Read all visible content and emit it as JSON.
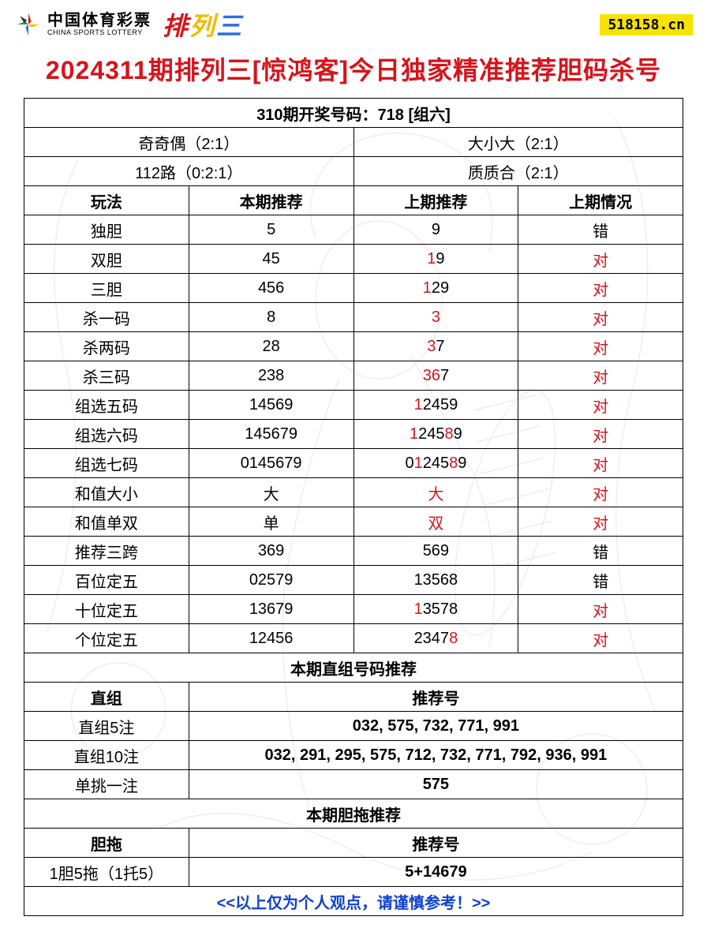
{
  "header": {
    "logo_cn": "中国体育彩票",
    "logo_en": "CHINA SPORTS LOTTERY",
    "pls": {
      "c1": "排",
      "c2": "列",
      "c3": "三"
    },
    "site_tag": "518158.cn"
  },
  "title": "2024311期排列三[惊鸿客]今日独家精准推荐胆码杀号",
  "draw_header": "310期开奖号码：718 [组六]",
  "summary": {
    "r1c1": "奇奇偶（2:1）",
    "r1c2": "大小大（2:1）",
    "r2c1": "112路（0:2:1）",
    "r2c2": "质质合（2:1）"
  },
  "cols": {
    "c1": "玩法",
    "c2": "本期推荐",
    "c3": "上期推荐",
    "c4": "上期情况"
  },
  "rows": [
    {
      "play": "独胆",
      "cur": "5",
      "prev": [
        {
          "t": "9",
          "r": false
        }
      ],
      "res": "错",
      "res_red": false
    },
    {
      "play": "双胆",
      "cur": "45",
      "prev": [
        {
          "t": "1",
          "r": true
        },
        {
          "t": "9",
          "r": false
        }
      ],
      "res": "对",
      "res_red": true
    },
    {
      "play": "三胆",
      "cur": "456",
      "prev": [
        {
          "t": "1",
          "r": true
        },
        {
          "t": "2",
          "r": false
        },
        {
          "t": "9",
          "r": false
        }
      ],
      "res": "对",
      "res_red": true
    },
    {
      "play": "杀一码",
      "cur": "8",
      "prev": [
        {
          "t": "3",
          "r": true
        }
      ],
      "res": "对",
      "res_red": true
    },
    {
      "play": "杀两码",
      "cur": "28",
      "prev": [
        {
          "t": "3",
          "r": true
        },
        {
          "t": "7",
          "r": false
        }
      ],
      "res": "对",
      "res_red": true
    },
    {
      "play": "杀三码",
      "cur": "238",
      "prev": [
        {
          "t": "3",
          "r": true
        },
        {
          "t": "6",
          "r": true
        },
        {
          "t": "7",
          "r": false
        }
      ],
      "res": "对",
      "res_red": true
    },
    {
      "play": "组选五码",
      "cur": "14569",
      "prev": [
        {
          "t": "1",
          "r": true
        },
        {
          "t": "2",
          "r": false
        },
        {
          "t": "4",
          "r": false
        },
        {
          "t": "5",
          "r": false
        },
        {
          "t": "9",
          "r": false
        }
      ],
      "res": "对",
      "res_red": true
    },
    {
      "play": "组选六码",
      "cur": "145679",
      "prev": [
        {
          "t": "1",
          "r": true
        },
        {
          "t": "2",
          "r": false
        },
        {
          "t": "4",
          "r": false
        },
        {
          "t": "5",
          "r": false
        },
        {
          "t": "8",
          "r": true
        },
        {
          "t": "9",
          "r": false
        }
      ],
      "res": "对",
      "res_red": true
    },
    {
      "play": "组选七码",
      "cur": "0145679",
      "prev": [
        {
          "t": "0",
          "r": false
        },
        {
          "t": "1",
          "r": true
        },
        {
          "t": "2",
          "r": false
        },
        {
          "t": "4",
          "r": false
        },
        {
          "t": "5",
          "r": false
        },
        {
          "t": "8",
          "r": true
        },
        {
          "t": "9",
          "r": false
        }
      ],
      "res": "对",
      "res_red": true
    },
    {
      "play": "和值大小",
      "cur": "大",
      "prev": [
        {
          "t": "大",
          "r": true
        }
      ],
      "res": "对",
      "res_red": true
    },
    {
      "play": "和值单双",
      "cur": "单",
      "prev": [
        {
          "t": "双",
          "r": true
        }
      ],
      "res": "对",
      "res_red": true
    },
    {
      "play": "推荐三跨",
      "cur": "369",
      "prev": [
        {
          "t": "569",
          "r": false
        }
      ],
      "res": "错",
      "res_red": false
    },
    {
      "play": "百位定五",
      "cur": "02579",
      "prev": [
        {
          "t": "13568",
          "r": false
        }
      ],
      "res": "错",
      "res_red": false
    },
    {
      "play": "十位定五",
      "cur": "13679",
      "prev": [
        {
          "t": "1",
          "r": true
        },
        {
          "t": "3578",
          "r": false
        }
      ],
      "res": "对",
      "res_red": true
    },
    {
      "play": "个位定五",
      "cur": "12456",
      "prev": [
        {
          "t": "2347",
          "r": false
        },
        {
          "t": "8",
          "r": true
        }
      ],
      "res": "对",
      "res_red": true
    }
  ],
  "section_zhizu": "本期直组号码推荐",
  "zhizu_header": {
    "c1": "直组",
    "c2": "推荐号"
  },
  "zhizu_rows": [
    {
      "label": "直组5注",
      "val": "032, 575, 732, 771, 991"
    },
    {
      "label": "直组10注",
      "val": "032, 291, 295, 575, 712, 732, 771, 792, 936, 991"
    },
    {
      "label": "单挑一注",
      "val": "575"
    }
  ],
  "section_dantuo": "本期胆拖推荐",
  "dantuo_header": {
    "c1": "胆拖",
    "c2": "推荐号"
  },
  "dantuo_rows": [
    {
      "label": "1胆5拖（1托5）",
      "val": "5+14679"
    }
  ],
  "footer": "<<以上仅为个人观点，请谨慎参考！>>"
}
